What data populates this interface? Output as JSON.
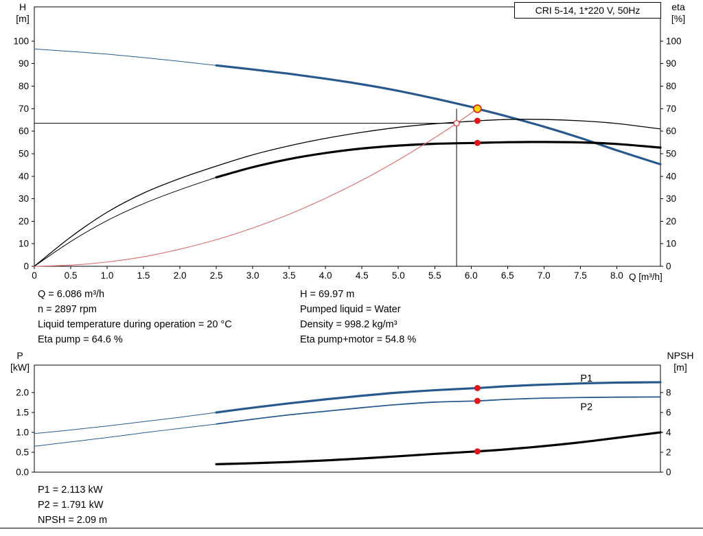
{
  "header": {
    "title": "CRI 5-14, 1*220 V, 50Hz"
  },
  "axes_labels": {
    "top_left": [
      "H",
      "[m]"
    ],
    "top_right": [
      "eta",
      "[%]"
    ],
    "x_title": "Q [m³/h]",
    "bottom_left": [
      "P",
      "[kW]"
    ],
    "bottom_right": [
      "NPSH",
      "[m]"
    ]
  },
  "info_top": {
    "left": [
      "Q = 6.086 m³/h",
      "n = 2897 rpm",
      "Liquid temperature during operation = 20 °C",
      "Eta pump = 64.6 %"
    ],
    "right": [
      "H = 69.97 m",
      "Pumped liquid = Water",
      "Density = 998.2 kg/m³",
      "Eta pump+motor = 54.8 %"
    ]
  },
  "info_bottom": [
    "P1 = 2.113 kW",
    "P2 = 1.791 kW",
    "NPSH = 2.09 m"
  ],
  "colors": {
    "curve_blue": "#27598f",
    "system_red": "#e06a6a",
    "marker_red": "#e01515",
    "marker_yellow": "#ffd800",
    "black": "#000000"
  },
  "chart_data": [
    {
      "type": "line",
      "name": "qh-eta-chart",
      "title": "CRI 5-14, 1*220 V, 50Hz",
      "xlabel": "Q [m³/h]",
      "ylabel_left": "H [m]",
      "ylabel_right": "eta [%]",
      "grid": false,
      "xlim": [
        0,
        8.6
      ],
      "ylim_left": [
        0,
        115.2
      ],
      "ylim_right": [
        0,
        115.2
      ],
      "xticks": {
        "values": [
          0,
          0.5,
          1,
          1.5,
          2,
          2.5,
          3,
          3.5,
          4,
          4.5,
          5,
          5.5,
          6,
          6.5,
          7,
          7.5,
          8
        ],
        "labels": [
          "0",
          "0.5",
          "1.0",
          "1.5",
          "2.0",
          "2.5",
          "3.0",
          "3.5",
          "4.0",
          "4.5",
          "5.0",
          "5.5",
          "6.0",
          "6.5",
          "7.0",
          "7.5",
          "8.0"
        ]
      },
      "yticks_left": {
        "values": [
          0,
          10,
          20,
          30,
          40,
          50,
          60,
          70,
          80,
          90,
          100
        ],
        "labels": [
          "0",
          "10",
          "20",
          "30",
          "40",
          "50",
          "60",
          "70",
          "80",
          "90",
          "100"
        ]
      },
      "yticks_right": {
        "values": [
          0,
          10,
          20,
          30,
          40,
          50,
          60,
          70,
          80,
          90,
          100
        ],
        "labels": [
          "0",
          "10",
          "20",
          "30",
          "40",
          "50",
          "60",
          "70",
          "80",
          "90",
          "100"
        ]
      },
      "series": [
        {
          "name": "h-curve-lead",
          "axis": "left",
          "color": "#27598f",
          "width": 1,
          "points": [
            [
              0,
              96.5
            ],
            [
              0.5,
              95.4
            ],
            [
              1,
              94.2
            ],
            [
              1.5,
              92.7
            ],
            [
              2,
              91.0
            ],
            [
              2.5,
              89.2
            ]
          ]
        },
        {
          "name": "h-curve",
          "axis": "left",
          "color": "#27598f",
          "width": 3.2,
          "points": [
            [
              2.5,
              89.2
            ],
            [
              3,
              87.4
            ],
            [
              3.5,
              85.5
            ],
            [
              4,
              83.3
            ],
            [
              4.5,
              80.8
            ],
            [
              5,
              77.9
            ],
            [
              5.5,
              74.5
            ],
            [
              6,
              70.8
            ],
            [
              6.086,
              69.97
            ],
            [
              6.5,
              66.5
            ],
            [
              7,
              62.0
            ],
            [
              7.5,
              57.0
            ],
            [
              8,
              51.5
            ],
            [
              8.6,
              45.3
            ]
          ]
        },
        {
          "name": "eta-pump-curve",
          "axis": "right",
          "color": "#000000",
          "width": 1.3,
          "points": [
            [
              0,
              0
            ],
            [
              0.5,
              13
            ],
            [
              1,
              24
            ],
            [
              1.5,
              32.5
            ],
            [
              2,
              39
            ],
            [
              2.5,
              44.5
            ],
            [
              3,
              49.5
            ],
            [
              3.5,
              53.5
            ],
            [
              4,
              56.8
            ],
            [
              4.5,
              59.5
            ],
            [
              5,
              61.7
            ],
            [
              5.5,
              63.3
            ],
            [
              6,
              64.4
            ],
            [
              6.086,
              64.6
            ],
            [
              6.5,
              65.2
            ],
            [
              7,
              65.2
            ],
            [
              7.5,
              64.6
            ],
            [
              8,
              63.4
            ],
            [
              8.6,
              61.0
            ]
          ]
        },
        {
          "name": "eta-pump-motor-lead",
          "axis": "right",
          "color": "#000000",
          "width": 1,
          "points": [
            [
              0,
              0
            ],
            [
              0.5,
              11
            ],
            [
              1,
              20.3
            ],
            [
              1.5,
              27.8
            ],
            [
              2,
              34.0
            ],
            [
              2.5,
              39.5
            ]
          ]
        },
        {
          "name": "eta-pump-motor-curve",
          "axis": "right",
          "color": "#000000",
          "width": 3.2,
          "points": [
            [
              2.5,
              39.5
            ],
            [
              3,
              44.0
            ],
            [
              3.5,
              47.6
            ],
            [
              4,
              50.3
            ],
            [
              4.5,
              52.3
            ],
            [
              5,
              53.6
            ],
            [
              5.5,
              54.4
            ],
            [
              6.086,
              54.8
            ],
            [
              6.5,
              55.1
            ],
            [
              7,
              55.2
            ],
            [
              7.5,
              55.0
            ],
            [
              8,
              54.3
            ],
            [
              8.6,
              52.7
            ]
          ]
        },
        {
          "name": "system-curve",
          "axis": "left",
          "color": "#e06a6a",
          "width": 1.1,
          "points": [
            [
              0,
              0
            ],
            [
              0.5,
              0.5
            ],
            [
              1,
              1.9
            ],
            [
              1.5,
              4.2
            ],
            [
              2,
              7.6
            ],
            [
              2.5,
              11.8
            ],
            [
              3,
              17.0
            ],
            [
              3.5,
              23.1
            ],
            [
              4,
              30.2
            ],
            [
              4.5,
              38.2
            ],
            [
              5,
              47.2
            ],
            [
              5.5,
              57.1
            ],
            [
              5.8,
              63.5
            ],
            [
              6.086,
              69.97
            ]
          ]
        }
      ],
      "ref_lines": [
        {
          "type": "h",
          "axis": "left",
          "value": 63.5,
          "from": 0,
          "to": 5.8
        },
        {
          "type": "v",
          "axis": "left",
          "value": 5.8,
          "from": 0,
          "to": 69.97
        }
      ],
      "markers": [
        {
          "name": "requested-duty-point",
          "x": 5.8,
          "y": 63.5,
          "axis": "left",
          "r": 4,
          "fill": "#ffffff",
          "stroke": "#e03030",
          "stroke_width": 1.2
        },
        {
          "name": "duty-point-eta-pump",
          "x": 6.086,
          "y": 64.6,
          "axis": "right",
          "r": 4.5,
          "fill": "#e01515"
        },
        {
          "name": "duty-point-eta-pump-motor",
          "x": 6.086,
          "y": 54.8,
          "axis": "right",
          "r": 4.5,
          "fill": "#e01515"
        },
        {
          "name": "operating-point",
          "x": 6.086,
          "y": 69.97,
          "axis": "left",
          "r": 5.5,
          "fill": "#ffd800",
          "stroke": "#e01515",
          "stroke_width": 1.6
        }
      ],
      "annotations": []
    },
    {
      "type": "line",
      "name": "power-npsh-chart",
      "title": "",
      "xlabel": "Q [m³/h]",
      "ylabel_left": "P [kW]",
      "ylabel_right": "NPSH [m]",
      "grid": false,
      "xlim": [
        0,
        8.6
      ],
      "ylim_left": [
        0,
        2.69
      ],
      "ylim_right": [
        0,
        10.76
      ],
      "xticks": {
        "values": [],
        "labels": []
      },
      "yticks_left": {
        "values": [
          0,
          0.5,
          1,
          1.5,
          2
        ],
        "labels": [
          "0.0",
          "0.5",
          "1.0",
          "1.5",
          "2.0"
        ]
      },
      "yticks_right": {
        "values": [
          0,
          2,
          4,
          6,
          8
        ],
        "labels": [
          "0",
          "2",
          "4",
          "6",
          "8"
        ]
      },
      "series": [
        {
          "name": "p1-curve-lead",
          "axis": "left",
          "color": "#27598f",
          "width": 1,
          "points": [
            [
              0,
              0.97
            ],
            [
              0.5,
              1.06
            ],
            [
              1,
              1.16
            ],
            [
              1.5,
              1.27
            ],
            [
              2,
              1.38
            ],
            [
              2.5,
              1.5
            ]
          ]
        },
        {
          "name": "p1-curve",
          "axis": "left",
          "color": "#27598f",
          "width": 3.2,
          "points": [
            [
              2.5,
              1.5
            ],
            [
              3,
              1.62
            ],
            [
              3.5,
              1.73
            ],
            [
              4,
              1.83
            ],
            [
              4.5,
              1.92
            ],
            [
              5,
              2.0
            ],
            [
              5.5,
              2.06
            ],
            [
              6.086,
              2.113
            ],
            [
              6.5,
              2.16
            ],
            [
              7,
              2.2
            ],
            [
              7.5,
              2.23
            ],
            [
              8,
              2.25
            ],
            [
              8.6,
              2.26
            ]
          ]
        },
        {
          "name": "p2-curve-lead",
          "axis": "left",
          "color": "#27598f",
          "width": 1,
          "points": [
            [
              0,
              0.65
            ],
            [
              0.5,
              0.76
            ],
            [
              1,
              0.87
            ],
            [
              1.5,
              0.99
            ],
            [
              2,
              1.1
            ],
            [
              2.5,
              1.21
            ]
          ]
        },
        {
          "name": "p2-curve",
          "axis": "left",
          "color": "#27598f",
          "width": 1.8,
          "points": [
            [
              2.5,
              1.21
            ],
            [
              3,
              1.33
            ],
            [
              3.5,
              1.44
            ],
            [
              4,
              1.53
            ],
            [
              4.5,
              1.62
            ],
            [
              5,
              1.7
            ],
            [
              5.5,
              1.76
            ],
            [
              6.086,
              1.791
            ],
            [
              6.5,
              1.83
            ],
            [
              7,
              1.86
            ],
            [
              7.5,
              1.875
            ],
            [
              8,
              1.885
            ],
            [
              8.6,
              1.89
            ]
          ]
        },
        {
          "name": "npsh-curve",
          "axis": "right",
          "color": "#000000",
          "width": 3.2,
          "points": [
            [
              2.5,
              0.8
            ],
            [
              3,
              0.9
            ],
            [
              3.5,
              1.02
            ],
            [
              4,
              1.18
            ],
            [
              4.5,
              1.38
            ],
            [
              5,
              1.6
            ],
            [
              5.5,
              1.84
            ],
            [
              6.086,
              2.09
            ],
            [
              6.5,
              2.3
            ],
            [
              7,
              2.62
            ],
            [
              7.5,
              3.0
            ],
            [
              8,
              3.45
            ],
            [
              8.6,
              4.0
            ]
          ]
        }
      ],
      "ref_lines": [],
      "markers": [
        {
          "name": "duty-point-p1",
          "x": 6.086,
          "y": 2.113,
          "axis": "left",
          "r": 4.5,
          "fill": "#e01515"
        },
        {
          "name": "duty-point-p2",
          "x": 6.086,
          "y": 1.791,
          "axis": "left",
          "r": 4.5,
          "fill": "#e01515"
        },
        {
          "name": "duty-point-npsh",
          "x": 6.086,
          "y": 2.09,
          "axis": "right",
          "r": 4.5,
          "fill": "#e01515"
        }
      ],
      "annotations": [
        {
          "text": "P1",
          "x": 7.5,
          "y": 2.28,
          "axis": "left",
          "color": "#27598f"
        },
        {
          "text": "P2",
          "x": 7.5,
          "y": 1.56,
          "axis": "left",
          "color": "#27598f"
        }
      ]
    }
  ]
}
